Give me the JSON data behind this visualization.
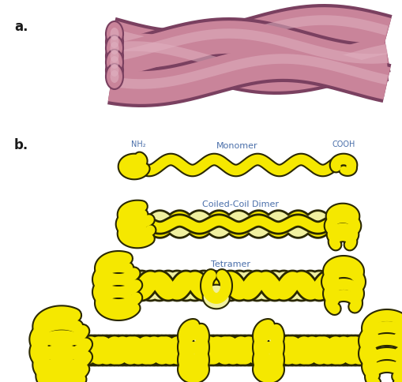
{
  "fig_width": 5.1,
  "fig_height": 4.85,
  "dpi": 100,
  "bg_color": "#ffffff",
  "label_a": "a.",
  "label_b": "b.",
  "label_color": "#1a1a1a",
  "label_fontsize": 12,
  "fc": "#c9849a",
  "fe": "#7a4060",
  "fl": "#e0b0c0",
  "yf": "#f5e800",
  "ye": "#2a2800",
  "yl": "#f0f0a0",
  "tc": "#4a6faa",
  "monomer_label": "Monomer",
  "dimer_label": "Coiled-Coil Dimer",
  "tetramer_label": "Tetramer",
  "nh2_label": "NH₂",
  "cooh_label": "COOH"
}
